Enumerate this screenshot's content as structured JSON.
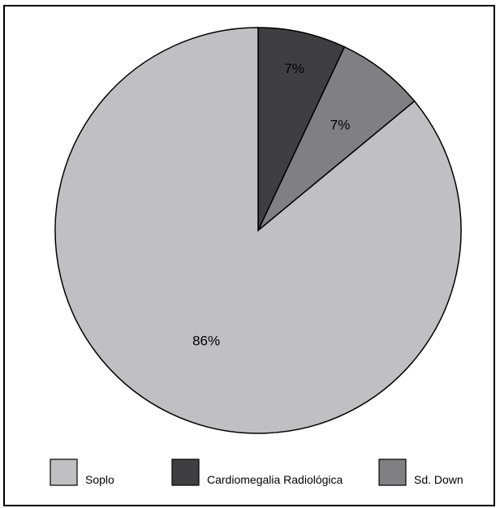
{
  "chart_data": {
    "type": "pie",
    "title": "",
    "slices": [
      {
        "name": "Cardiomegalia Radiológica",
        "value": 7,
        "label": "7%",
        "color": "#3f3f41"
      },
      {
        "name": "Sd. Down",
        "value": 7,
        "label": "7%",
        "color": "#808082"
      },
      {
        "name": "Soplo",
        "value": 86,
        "label": "86%",
        "color": "#c0c0c2"
      }
    ],
    "legend": {
      "placement": "bottom",
      "items": [
        {
          "name": "Soplo",
          "color": "#c0c0c2"
        },
        {
          "name": "Cardiomegalia Radiológica",
          "color": "#3f3f41"
        },
        {
          "name": "Sd. Down",
          "color": "#808082"
        }
      ]
    }
  }
}
